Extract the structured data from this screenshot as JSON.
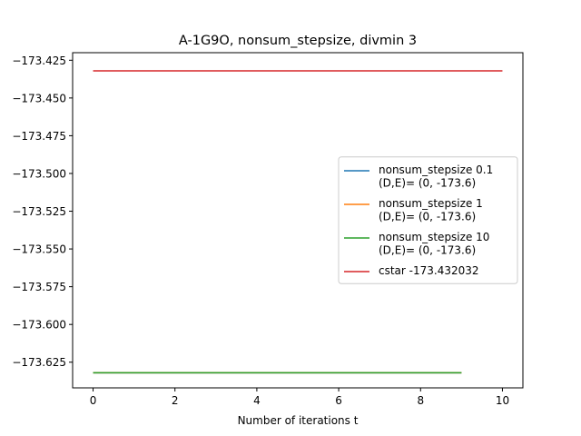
{
  "chart_data": {
    "type": "line",
    "title": "A-1G9O, nonsum_stepsize, divmin 3",
    "xlabel": "Number of iterations t",
    "ylabel": "",
    "xlim": [
      -0.5,
      10.5
    ],
    "ylim": [
      -173.642,
      -173.42
    ],
    "x_ticks": [
      0,
      2,
      4,
      6,
      8,
      10
    ],
    "x_tick_labels": [
      "0",
      "2",
      "4",
      "6",
      "8",
      "10"
    ],
    "y_ticks": [
      -173.425,
      -173.45,
      -173.475,
      -173.5,
      -173.525,
      -173.55,
      -173.575,
      -173.6,
      -173.625
    ],
    "y_tick_labels": [
      "−173.425",
      "−173.450",
      "−173.475",
      "−173.500",
      "−173.525",
      "−173.550",
      "−173.575",
      "−173.600",
      "−173.625"
    ],
    "grid": false,
    "legend_position": "center-right",
    "series": [
      {
        "name": "nonsum_stepsize 0.1\n(D,E)= (0, -173.6)",
        "color": "#1f77b4",
        "x": [
          0,
          1,
          2,
          3,
          4,
          5,
          6,
          7,
          8,
          9
        ],
        "y": [
          -173.632,
          -173.632,
          -173.632,
          -173.632,
          -173.632,
          -173.632,
          -173.632,
          -173.632,
          -173.632,
          -173.632
        ]
      },
      {
        "name": "nonsum_stepsize 1\n(D,E)= (0, -173.6)",
        "color": "#ff7f0e",
        "x": [
          0,
          1,
          2,
          3,
          4,
          5,
          6,
          7,
          8,
          9
        ],
        "y": [
          -173.632,
          -173.632,
          -173.632,
          -173.632,
          -173.632,
          -173.632,
          -173.632,
          -173.632,
          -173.632,
          -173.632
        ]
      },
      {
        "name": "nonsum_stepsize 10\n(D,E)= (0, -173.6)",
        "color": "#2ca02c",
        "x": [
          0,
          1,
          2,
          3,
          4,
          5,
          6,
          7,
          8,
          9
        ],
        "y": [
          -173.632,
          -173.632,
          -173.632,
          -173.632,
          -173.632,
          -173.632,
          -173.632,
          -173.632,
          -173.632,
          -173.632
        ]
      },
      {
        "name": "cstar -173.432032",
        "color": "#d62728",
        "x": [
          0,
          10
        ],
        "y": [
          -173.432032,
          -173.432032
        ]
      }
    ]
  }
}
